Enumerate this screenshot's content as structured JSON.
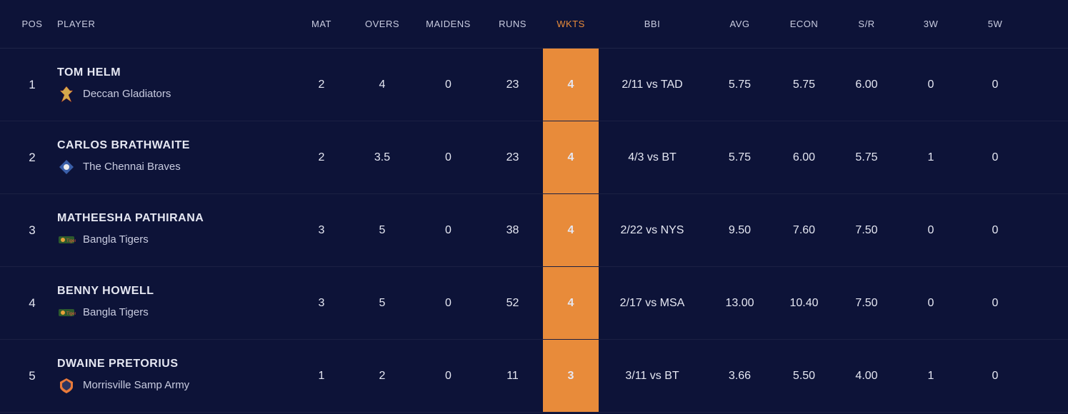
{
  "columns": {
    "pos": "POS",
    "player": "PLAYER",
    "mat": "MAT",
    "overs": "OVERS",
    "maidens": "MAIDENS",
    "runs": "RUNS",
    "wkts": "WKTS",
    "bbi": "BBI",
    "avg": "AVG",
    "econ": "ECON",
    "sr": "S/R",
    "w3": "3W",
    "w5": "5W"
  },
  "highlight_column": "wkts",
  "highlight_color": "#e88b3a",
  "background_color": "#0d1338",
  "text_color": "#e5e7f2",
  "rows": [
    {
      "pos": "1",
      "player": "TOM HELM",
      "team": "Deccan Gladiators",
      "team_logo": "deccan",
      "mat": "2",
      "overs": "4",
      "maidens": "0",
      "runs": "23",
      "wkts": "4",
      "bbi": "2/11 vs TAD",
      "avg": "5.75",
      "econ": "5.75",
      "sr": "6.00",
      "w3": "0",
      "w5": "0"
    },
    {
      "pos": "2",
      "player": "CARLOS BRATHWAITE",
      "team": "The Chennai Braves",
      "team_logo": "chennai",
      "mat": "2",
      "overs": "3.5",
      "maidens": "0",
      "runs": "23",
      "wkts": "4",
      "bbi": "4/3 vs BT",
      "avg": "5.75",
      "econ": "6.00",
      "sr": "5.75",
      "w3": "1",
      "w5": "0"
    },
    {
      "pos": "3",
      "player": "MATHEESHA PATHIRANA",
      "team": "Bangla Tigers",
      "team_logo": "bangla",
      "mat": "3",
      "overs": "5",
      "maidens": "0",
      "runs": "38",
      "wkts": "4",
      "bbi": "2/22 vs NYS",
      "avg": "9.50",
      "econ": "7.60",
      "sr": "7.50",
      "w3": "0",
      "w5": "0"
    },
    {
      "pos": "4",
      "player": "BENNY HOWELL",
      "team": "Bangla Tigers",
      "team_logo": "bangla",
      "mat": "3",
      "overs": "5",
      "maidens": "0",
      "runs": "52",
      "wkts": "4",
      "bbi": "2/17 vs MSA",
      "avg": "13.00",
      "econ": "10.40",
      "sr": "7.50",
      "w3": "0",
      "w5": "0"
    },
    {
      "pos": "5",
      "player": "DWAINE PRETORIUS",
      "team": "Morrisville Samp Army",
      "team_logo": "morrisville",
      "mat": "1",
      "overs": "2",
      "maidens": "0",
      "runs": "11",
      "wkts": "3",
      "bbi": "3/11 vs BT",
      "avg": "3.66",
      "econ": "5.50",
      "sr": "4.00",
      "w3": "1",
      "w5": "0"
    }
  ]
}
